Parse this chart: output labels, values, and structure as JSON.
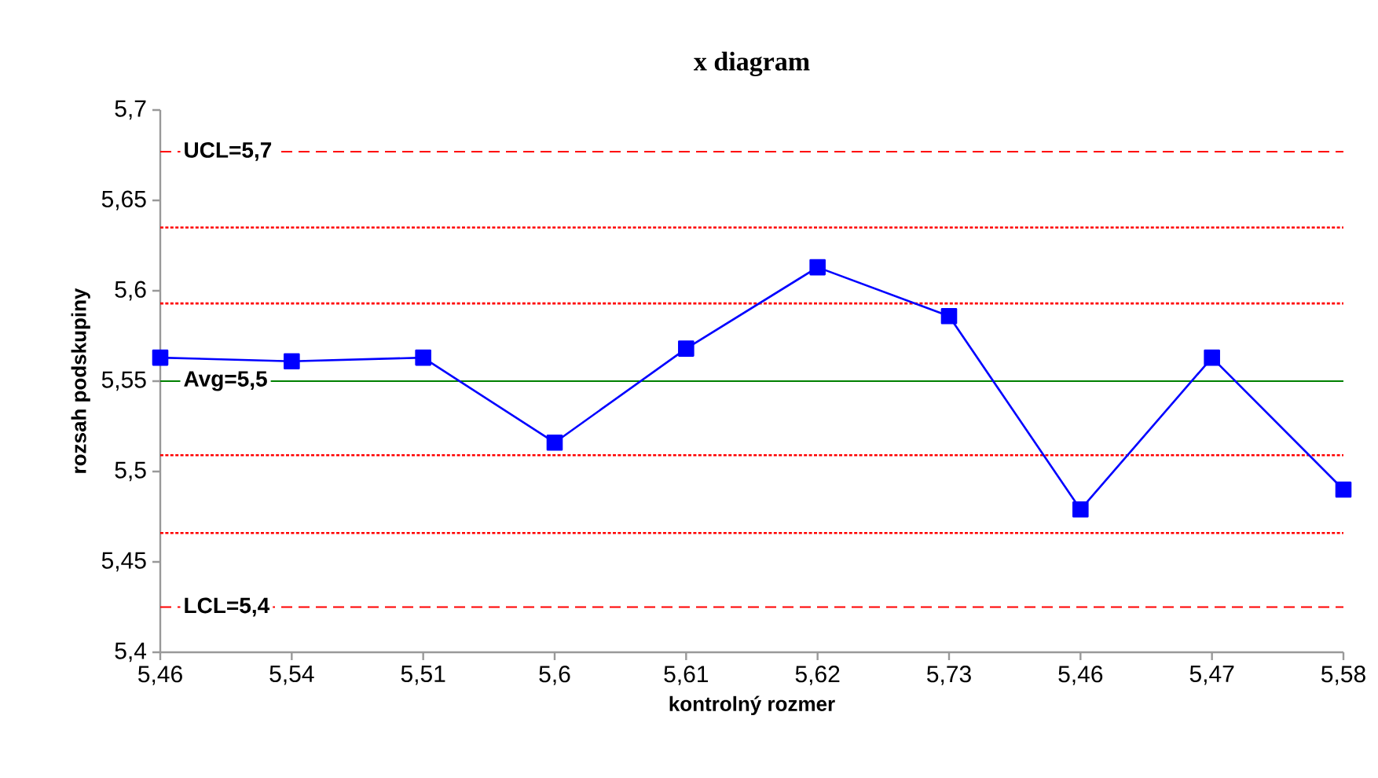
{
  "chart_data": {
    "type": "line",
    "title": "x diagram",
    "xlabel": "kontrolný rozmer",
    "ylabel": "rozsah podskupiny",
    "categories": [
      "5,46",
      "5,54",
      "5,51",
      "5,6",
      "5,61",
      "5,62",
      "5,73",
      "5,46",
      "5,47",
      "5,58"
    ],
    "series": [
      {
        "color": "#0000ff",
        "values": [
          5.563,
          5.561,
          5.563,
          5.516,
          5.568,
          5.613,
          5.586,
          5.479,
          5.563,
          5.49
        ]
      }
    ],
    "ylim": [
      5.4,
      5.7
    ],
    "yticks": [
      {
        "value": 5.4,
        "label": "5,4"
      },
      {
        "value": 5.45,
        "label": "5,45"
      },
      {
        "value": 5.5,
        "label": "5,5"
      },
      {
        "value": 5.55,
        "label": "5,55"
      },
      {
        "value": 5.6,
        "label": "5,6"
      },
      {
        "value": 5.65,
        "label": "5,65"
      },
      {
        "value": 5.7,
        "label": "5,7"
      }
    ],
    "marker": "square",
    "line_style": "solid",
    "ref_lines": [
      {
        "axis": "y",
        "value": 5.677,
        "label": "UCL=5,7",
        "color": "#ff0000",
        "line_style": "dashed"
      },
      {
        "axis": "y",
        "value": 5.635,
        "color": "#ff0000",
        "line_style": "dotted"
      },
      {
        "axis": "y",
        "value": 5.593,
        "color": "#ff0000",
        "line_style": "dotted"
      },
      {
        "axis": "y",
        "value": 5.55,
        "label": "Avg=5,5",
        "color": "#008000",
        "line_style": "solid"
      },
      {
        "axis": "y",
        "value": 5.509,
        "color": "#ff0000",
        "line_style": "dotted"
      },
      {
        "axis": "y",
        "value": 5.466,
        "color": "#ff0000",
        "line_style": "dotted"
      },
      {
        "axis": "y",
        "value": 5.425,
        "label": "LCL=5,4",
        "color": "#ff0000",
        "line_style": "dashed"
      }
    ]
  }
}
